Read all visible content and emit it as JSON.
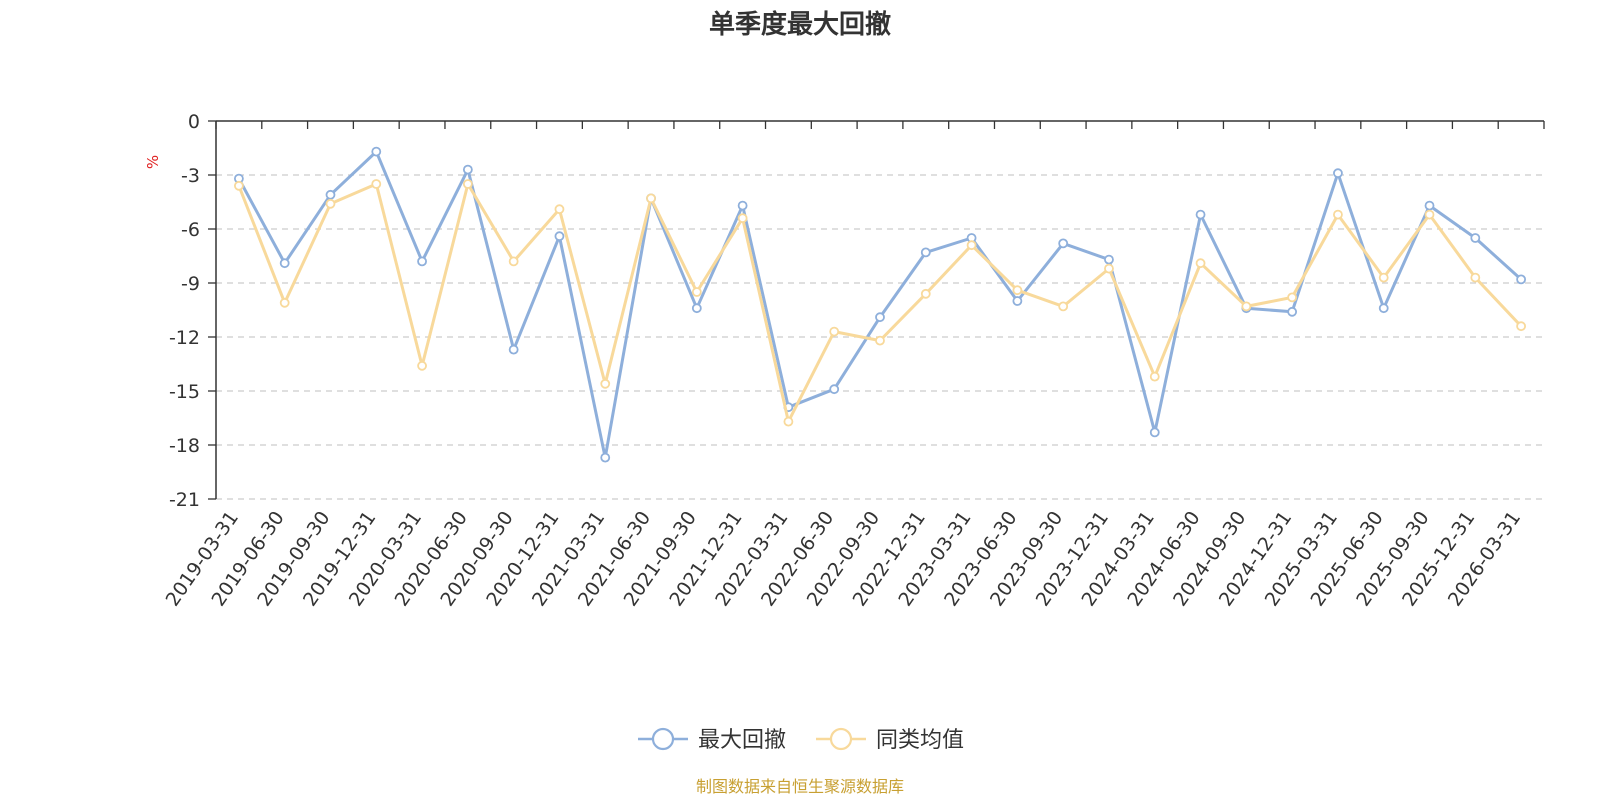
{
  "chart_data": {
    "type": "line",
    "title": "单季度最大回撤",
    "ylabel": "%",
    "ylim": [
      -21,
      0
    ],
    "yticks": [
      0,
      -3,
      -6,
      -9,
      -12,
      -15,
      -18,
      -21
    ],
    "grid": true,
    "legend_position": "bottom",
    "source_note": "制图数据来自恒生聚源数据库",
    "categories": [
      "2019-03-31",
      "2019-06-30",
      "2019-09-30",
      "2019-12-31",
      "2020-03-31",
      "2020-06-30",
      "2020-09-30",
      "2020-12-31",
      "2021-03-31",
      "2021-06-30",
      "2021-09-30",
      "2021-12-31",
      "2022-03-31",
      "2022-06-30",
      "2022-09-30",
      "2022-12-31",
      "2023-03-31",
      "2023-06-30",
      "2023-09-30",
      "2023-12-31",
      "2024-03-31",
      "2024-06-30",
      "2024-09-30",
      "2024-12-31",
      "2025-03-31",
      "2025-06-30",
      "2025-09-30",
      "2025-12-31",
      "2026-03-31"
    ],
    "series": [
      {
        "name": "最大回撤",
        "color": "#8eafdb",
        "values": [
          -3.2,
          -7.9,
          -4.1,
          -1.7,
          -7.8,
          -2.7,
          -12.7,
          -6.4,
          -18.7,
          -4.3,
          -10.4,
          -4.7,
          -15.9,
          -14.9,
          -10.9,
          -7.3,
          -6.5,
          -10.0,
          -6.8,
          -7.7,
          -17.3,
          -5.2,
          -10.4,
          -10.6,
          -2.9,
          -10.4,
          -4.7,
          -6.5,
          -8.8
        ]
      },
      {
        "name": "同类均值",
        "color": "#f8d99b",
        "values": [
          -3.6,
          -10.1,
          -4.6,
          -3.5,
          -13.6,
          -3.5,
          -7.8,
          -4.9,
          -14.6,
          -4.3,
          -9.5,
          -5.4,
          -16.7,
          -11.7,
          -12.2,
          -9.6,
          -6.9,
          -9.4,
          -10.3,
          -8.2,
          -14.2,
          -7.9,
          -10.3,
          -9.8,
          -5.2,
          -8.7,
          -5.2,
          -8.7,
          -11.4
        ]
      }
    ]
  }
}
